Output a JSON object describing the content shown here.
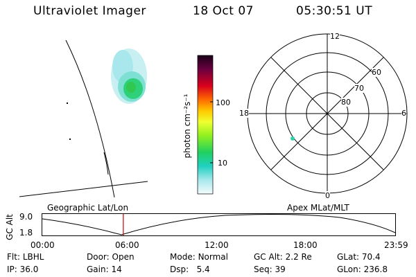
{
  "header": {
    "instrument": "Ultraviolet Imager",
    "date": "18 Oct 07",
    "time": "05:30:51 UT"
  },
  "colorbar": {
    "label": "photon cm⁻²s⁻¹",
    "ticks": [
      "100",
      "10"
    ]
  },
  "polar_plot": {
    "mlt_labels": {
      "top": "12",
      "left": "18",
      "right": "6",
      "bottom": "0"
    },
    "lat_labels": [
      "60",
      "70",
      "80"
    ]
  },
  "map_labels": {
    "left": "Geographic Lat/Lon",
    "right": "Apex MLat/MLT"
  },
  "altitude_plot": {
    "ylabel": "GC Alt",
    "y_ticks": [
      "9.0",
      "1.8"
    ],
    "x_ticks": [
      "00:00",
      "06:00",
      "12:00",
      "18:00",
      "23:59"
    ],
    "current_time_hours": 5.5
  },
  "info": {
    "row1": [
      {
        "label": "Flt:",
        "value": "LBHL"
      },
      {
        "label": "Door:",
        "value": "Open"
      },
      {
        "label": "Mode:",
        "value": "Normal"
      },
      {
        "label": "GC Alt:",
        "value": "2.2 Re"
      },
      {
        "label": "GLat:",
        "value": "70.4"
      }
    ],
    "row2": [
      {
        "label": "IP:",
        "value": "36.0"
      },
      {
        "label": "Gain:",
        "value": "14"
      },
      {
        "label": "Dsp:",
        "value": "5.4"
      },
      {
        "label": "Seq:",
        "value": "39"
      },
      {
        "label": "GLon:",
        "value": "236.8"
      }
    ]
  },
  "colors": {
    "marker": "#cc0000",
    "aurora_core": "#2ed17a",
    "aurora_edge": "#a8e8ec"
  }
}
